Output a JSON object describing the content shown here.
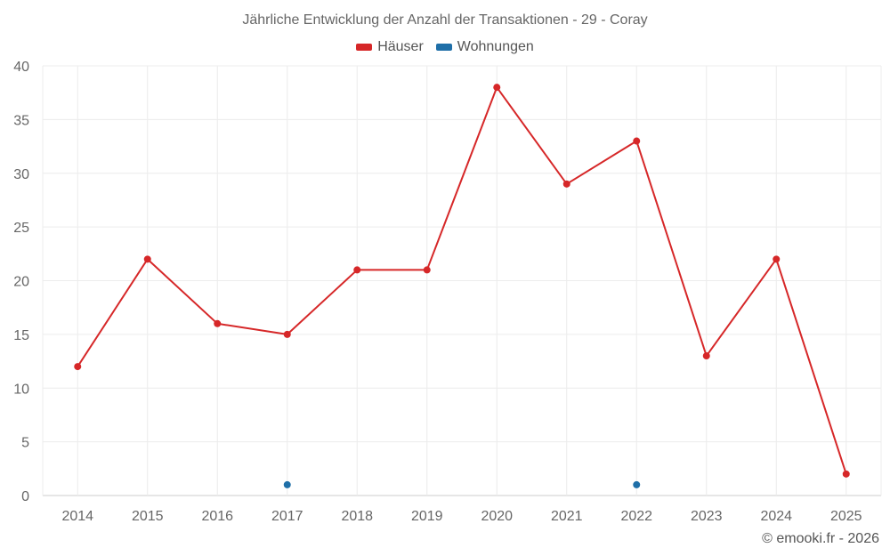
{
  "chart_data": {
    "type": "line",
    "title": "Jährliche Entwicklung der Anzahl der Transaktionen - 29 - Coray",
    "x": [
      "2014",
      "2015",
      "2016",
      "2017",
      "2018",
      "2019",
      "2020",
      "2021",
      "2022",
      "2023",
      "2024",
      "2025"
    ],
    "ylim": [
      0,
      40
    ],
    "yticks": [
      0,
      5,
      10,
      15,
      20,
      25,
      30,
      35,
      40
    ],
    "grid": true,
    "legend_position": "top-center",
    "series": [
      {
        "name": "Häuser",
        "color": "#d62728",
        "values": [
          12,
          22,
          16,
          15,
          21,
          21,
          38,
          29,
          33,
          13,
          22,
          2
        ]
      },
      {
        "name": "Wohnungen",
        "color": "#1f6fa8",
        "values": [
          null,
          null,
          null,
          1,
          null,
          null,
          null,
          null,
          1,
          null,
          null,
          null
        ]
      }
    ]
  },
  "credit": "© emooki.fr - 2026"
}
